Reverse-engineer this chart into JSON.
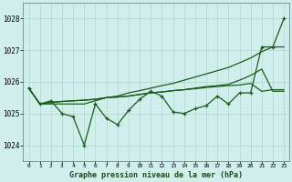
{
  "bg_color": "#d0eeeb",
  "grid_color": "#b0d8d0",
  "line_color": "#1a5c1a",
  "title": "Graphe pression niveau de la mer (hPa)",
  "xlim": [
    -0.5,
    23.5
  ],
  "ylim": [
    1023.5,
    1028.5
  ],
  "yticks": [
    1024,
    1025,
    1026,
    1027,
    1028
  ],
  "xticks": [
    0,
    1,
    2,
    3,
    4,
    5,
    6,
    7,
    8,
    9,
    10,
    11,
    12,
    13,
    14,
    15,
    16,
    17,
    18,
    19,
    20,
    21,
    22,
    23
  ],
  "hours": [
    0,
    1,
    2,
    3,
    4,
    5,
    6,
    7,
    8,
    9,
    10,
    11,
    12,
    13,
    14,
    15,
    16,
    17,
    18,
    19,
    20,
    21,
    22,
    23
  ],
  "line_jagged": [
    1025.8,
    1025.3,
    1025.4,
    1025.0,
    1024.9,
    1024.0,
    1025.3,
    1024.85,
    1024.65,
    1025.1,
    1025.45,
    1025.7,
    1025.55,
    1025.05,
    1025.0,
    1025.15,
    1025.25,
    1025.55,
    1025.3,
    1025.65,
    1025.65,
    1027.1,
    1027.1,
    1028.0
  ],
  "line_steep": [
    1025.8,
    1025.3,
    1025.3,
    1025.3,
    1025.3,
    1025.3,
    1025.4,
    1025.5,
    1025.55,
    1025.65,
    1025.72,
    1025.8,
    1025.88,
    1025.95,
    1026.05,
    1026.15,
    1026.25,
    1026.35,
    1026.45,
    1026.6,
    1026.75,
    1026.95,
    1027.1,
    1027.1
  ],
  "line_gradual1": [
    1025.8,
    1025.3,
    1025.35,
    1025.38,
    1025.4,
    1025.42,
    1025.45,
    1025.5,
    1025.52,
    1025.55,
    1025.6,
    1025.65,
    1025.68,
    1025.72,
    1025.75,
    1025.8,
    1025.85,
    1025.88,
    1025.92,
    1026.05,
    1026.2,
    1026.4,
    1025.7,
    1025.7
  ],
  "line_flat": [
    1025.8,
    1025.3,
    1025.35,
    1025.38,
    1025.4,
    1025.42,
    1025.45,
    1025.5,
    1025.52,
    1025.55,
    1025.6,
    1025.65,
    1025.68,
    1025.72,
    1025.75,
    1025.78,
    1025.82,
    1025.85,
    1025.88,
    1025.9,
    1025.95,
    1025.7,
    1025.75,
    1025.75
  ]
}
